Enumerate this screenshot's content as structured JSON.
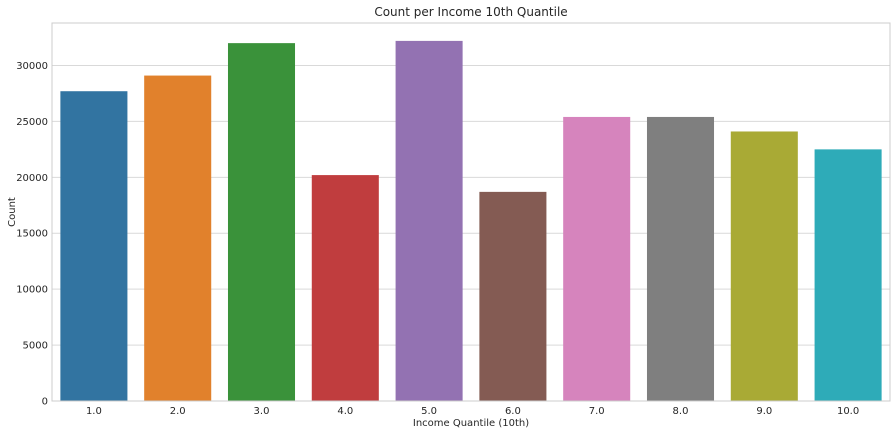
{
  "chart_data": {
    "type": "bar",
    "title": "Count per Income 10th Quantile",
    "xlabel": "Income Quantile (10th)",
    "ylabel": "Count",
    "categories": [
      "1.0",
      "2.0",
      "3.0",
      "4.0",
      "5.0",
      "6.0",
      "7.0",
      "8.0",
      "9.0",
      "10.0"
    ],
    "values": [
      27700,
      29100,
      32000,
      20200,
      32200,
      18700,
      25400,
      25400,
      24100,
      22500
    ],
    "colors": [
      "#3274a1",
      "#e1812c",
      "#3a923a",
      "#c03d3e",
      "#9372b2",
      "#845b53",
      "#d684bd",
      "#7f7f7f",
      "#a9aa35",
      "#2eabb8"
    ],
    "ylim": [
      0,
      33800
    ],
    "yticks": [
      0,
      5000,
      10000,
      15000,
      20000,
      25000,
      30000
    ],
    "grid": true,
    "style": {
      "background": "#ffffff",
      "grid_color": "#d9d9d9",
      "spine_color": "#cccccc",
      "text_color": "#262626"
    }
  }
}
